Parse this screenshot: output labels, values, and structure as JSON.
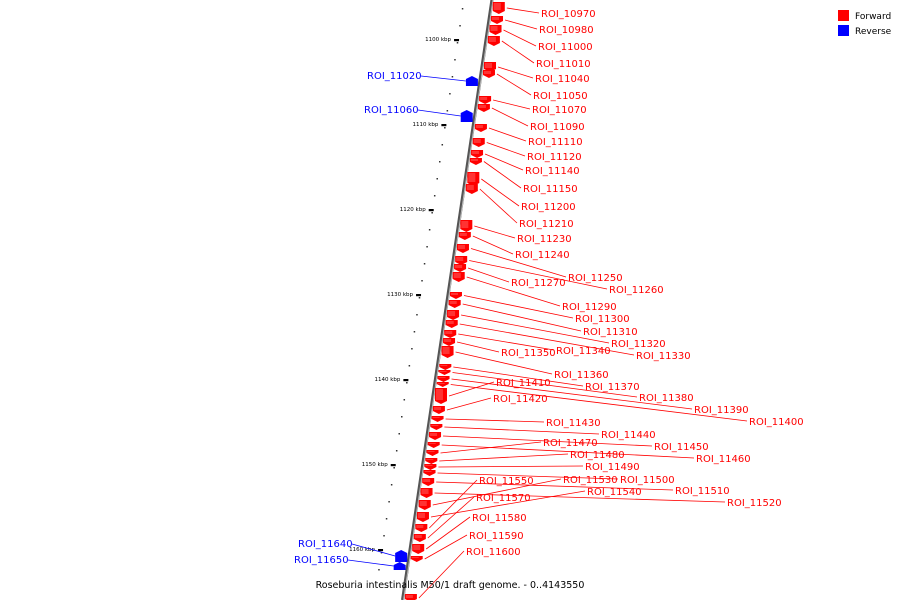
{
  "caption": "Roseburia intestinalis M50/1 draft genome. - 0..4143550",
  "legend": [
    {
      "label": "Forward",
      "color": "#ff0000"
    },
    {
      "label": "Reverse",
      "color": "#0000ff"
    }
  ],
  "colors": {
    "forward": "#ff0000",
    "reverse": "#0000ff",
    "backbone": "#888888"
  },
  "ticks": [
    "1100 kbp",
    "1110 kbp",
    "1120 kbp",
    "1130 kbp",
    "1140 kbp",
    "1150 kbp",
    "1160 kbp"
  ],
  "genes": [
    {
      "label": "ROI_10970",
      "strand": "forward"
    },
    {
      "label": "ROI_10980",
      "strand": "forward"
    },
    {
      "label": "ROI_11000",
      "strand": "forward"
    },
    {
      "label": "ROI_11010",
      "strand": "forward"
    },
    {
      "label": "ROI_11040",
      "strand": "forward"
    },
    {
      "label": "ROI_11050",
      "strand": "forward"
    },
    {
      "label": "ROI_11070",
      "strand": "forward"
    },
    {
      "label": "ROI_11090",
      "strand": "forward"
    },
    {
      "label": "ROI_11110",
      "strand": "forward"
    },
    {
      "label": "ROI_11120",
      "strand": "forward"
    },
    {
      "label": "ROI_11140",
      "strand": "forward"
    },
    {
      "label": "ROI_11150",
      "strand": "forward"
    },
    {
      "label": "ROI_11200",
      "strand": "forward"
    },
    {
      "label": "ROI_11210",
      "strand": "forward"
    },
    {
      "label": "ROI_11230",
      "strand": "forward"
    },
    {
      "label": "ROI_11240",
      "strand": "forward"
    },
    {
      "label": "ROI_11250",
      "strand": "forward"
    },
    {
      "label": "ROI_11260",
      "strand": "forward"
    },
    {
      "label": "ROI_11270",
      "strand": "forward"
    },
    {
      "label": "ROI_11290",
      "strand": "forward"
    },
    {
      "label": "ROI_11300",
      "strand": "forward"
    },
    {
      "label": "ROI_11310",
      "strand": "forward"
    },
    {
      "label": "ROI_11320",
      "strand": "forward"
    },
    {
      "label": "ROI_11330",
      "strand": "forward"
    },
    {
      "label": "ROI_11340",
      "strand": "forward"
    },
    {
      "label": "ROI_11350",
      "strand": "forward"
    },
    {
      "label": "ROI_11360",
      "strand": "forward"
    },
    {
      "label": "ROI_11370",
      "strand": "forward"
    },
    {
      "label": "ROI_11380",
      "strand": "forward"
    },
    {
      "label": "ROI_11390",
      "strand": "forward"
    },
    {
      "label": "ROI_11400",
      "strand": "forward"
    },
    {
      "label": "ROI_11410",
      "strand": "forward"
    },
    {
      "label": "ROI_11420",
      "strand": "forward"
    },
    {
      "label": "ROI_11430",
      "strand": "forward"
    },
    {
      "label": "ROI_11440",
      "strand": "forward"
    },
    {
      "label": "ROI_11450",
      "strand": "forward"
    },
    {
      "label": "ROI_11460",
      "strand": "forward"
    },
    {
      "label": "ROI_11470",
      "strand": "forward"
    },
    {
      "label": "ROI_11480",
      "strand": "forward"
    },
    {
      "label": "ROI_11490",
      "strand": "forward"
    },
    {
      "label": "ROI_11500",
      "strand": "forward"
    },
    {
      "label": "ROI_11510",
      "strand": "forward"
    },
    {
      "label": "ROI_11520",
      "strand": "forward"
    },
    {
      "label": "ROI_11530",
      "strand": "forward"
    },
    {
      "label": "ROI_11540",
      "strand": "forward"
    },
    {
      "label": "ROI_11550",
      "strand": "forward"
    },
    {
      "label": "ROI_11570",
      "strand": "forward"
    },
    {
      "label": "ROI_11580",
      "strand": "forward"
    },
    {
      "label": "ROI_11590",
      "strand": "forward"
    },
    {
      "label": "ROI_11600",
      "strand": "forward"
    },
    {
      "label": "ROI_11020",
      "strand": "reverse"
    },
    {
      "label": "ROI_11060",
      "strand": "reverse"
    },
    {
      "label": "ROI_11640",
      "strand": "reverse"
    },
    {
      "label": "ROI_11650",
      "strand": "reverse"
    }
  ]
}
